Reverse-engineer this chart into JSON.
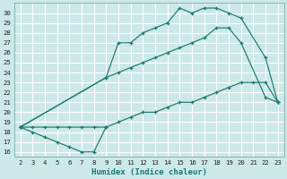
{
  "xlabel": "Humidex (Indice chaleur)",
  "bg_color": "#cce8e8",
  "grid_color": "#ffffff",
  "line_color": "#1a7a6e",
  "xlim": [
    1.5,
    23.5
  ],
  "ylim": [
    15.5,
    31.0
  ],
  "xticks": [
    2,
    3,
    4,
    5,
    6,
    7,
    8,
    9,
    10,
    11,
    12,
    13,
    14,
    15,
    16,
    17,
    18,
    19,
    20,
    21,
    22,
    23
  ],
  "yticks": [
    16,
    17,
    18,
    19,
    20,
    21,
    22,
    23,
    24,
    25,
    26,
    27,
    28,
    29,
    30
  ],
  "line_dip_x": [
    2,
    3,
    4,
    5,
    6,
    7,
    8,
    9
  ],
  "line_dip_y": [
    18.5,
    18.0,
    17.5,
    17.0,
    16.5,
    16.0,
    16.0,
    18.5
  ],
  "line_upper_x": [
    2,
    9,
    10,
    11,
    12,
    13,
    14,
    15,
    16,
    17,
    18,
    19,
    20,
    22,
    23
  ],
  "line_upper_y": [
    18.5,
    23.5,
    27.0,
    27.0,
    28.0,
    28.5,
    29.0,
    30.5,
    30.0,
    30.5,
    30.5,
    30.0,
    29.5,
    25.5,
    21.0
  ],
  "line_mid_x": [
    2,
    9,
    10,
    11,
    12,
    13,
    14,
    15,
    16,
    17,
    18,
    19,
    20,
    22,
    23
  ],
  "line_mid_y": [
    18.5,
    23.5,
    24.0,
    24.5,
    25.0,
    25.5,
    26.0,
    26.5,
    27.0,
    27.5,
    28.5,
    28.5,
    27.0,
    21.5,
    21.0
  ],
  "line_bottom_x": [
    2,
    3,
    4,
    5,
    6,
    7,
    8,
    9,
    10,
    11,
    12,
    13,
    14,
    15,
    16,
    17,
    18,
    19,
    20,
    21,
    22,
    23
  ],
  "line_bottom_y": [
    18.5,
    18.5,
    18.5,
    18.5,
    18.5,
    18.5,
    18.5,
    18.5,
    19.0,
    19.5,
    20.0,
    20.0,
    20.5,
    21.0,
    21.0,
    21.5,
    22.0,
    22.5,
    23.0,
    23.0,
    23.0,
    21.0
  ]
}
